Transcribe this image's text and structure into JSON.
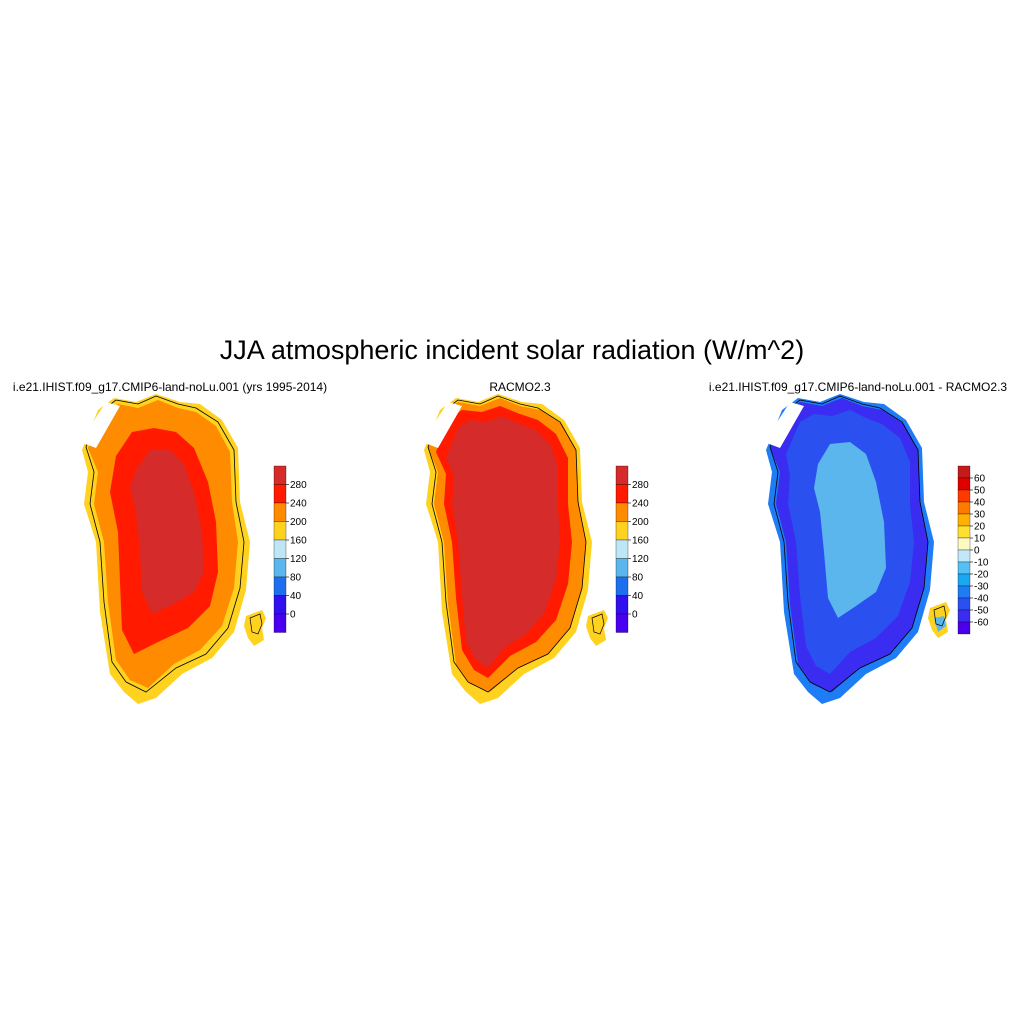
{
  "figure": {
    "title": "JJA atmospheric incident solar radiation (W/m^2)"
  },
  "panels": [
    {
      "title": "i.e21.IHIST.f09_g17.CMIP6-land-noLu.001 (yrs 1995-2014)",
      "colorbar": {
        "labels": [
          "280",
          "240",
          "200",
          "160",
          "120",
          "80",
          "40",
          "0"
        ],
        "colors": [
          "#d52b2b",
          "#ff1a00",
          "#ff8c00",
          "#ffd21f",
          "#bfe6f5",
          "#5ab6ec",
          "#1e6ff0",
          "#3010ee",
          "#4a00f0"
        ]
      },
      "regions": [
        {
          "name": "interior",
          "color": "#d52b2b"
        },
        {
          "name": "inner-ring",
          "color": "#ff1a00"
        },
        {
          "name": "coast",
          "color": "#ff8c00"
        },
        {
          "name": "margin",
          "color": "#ffd21f"
        }
      ]
    },
    {
      "title": "RACMO2.3",
      "colorbar": {
        "labels": [
          "280",
          "240",
          "200",
          "160",
          "120",
          "80",
          "40",
          "0"
        ],
        "colors": [
          "#d52b2b",
          "#ff1a00",
          "#ff8c00",
          "#ffd21f",
          "#bfe6f5",
          "#5ab6ec",
          "#1e6ff0",
          "#3010ee",
          "#4a00f0"
        ]
      },
      "regions": [
        {
          "name": "interior",
          "color": "#d52b2b"
        },
        {
          "name": "inner-ring",
          "color": "#ff1a00"
        },
        {
          "name": "coast",
          "color": "#ff8c00"
        },
        {
          "name": "margin",
          "color": "#ffd21f"
        }
      ]
    },
    {
      "title": "i.e21.IHIST.f09_g17.CMIP6-land-noLu.001 - RACMO2.3",
      "colorbar": {
        "labels": [
          "60",
          "50",
          "40",
          "30",
          "20",
          "10",
          "0",
          "-10",
          "-20",
          "-30",
          "-40",
          "-50",
          "-60"
        ],
        "colors": [
          "#c41a1a",
          "#e00000",
          "#ff3a00",
          "#ff7a00",
          "#ffb000",
          "#ffe030",
          "#fffac0",
          "#c0e8f8",
          "#55c0f5",
          "#1aa8f0",
          "#1e7cf5",
          "#2a50f0",
          "#3a2cf0",
          "#4a00e8"
        ]
      },
      "regions": [
        {
          "name": "interior",
          "color": "#5ab6ec"
        },
        {
          "name": "inner-ring",
          "color": "#2a50f0"
        },
        {
          "name": "coast",
          "color": "#3a2cf0"
        },
        {
          "name": "margin",
          "color": "#1e7cf5"
        }
      ]
    }
  ]
}
